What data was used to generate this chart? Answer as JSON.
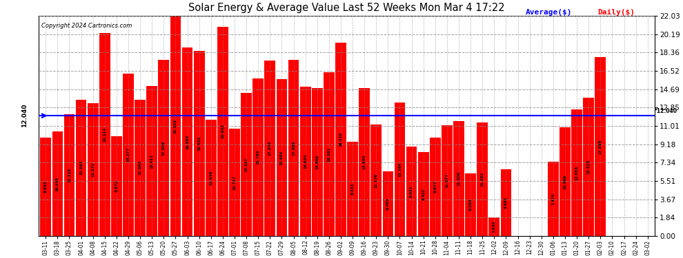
{
  "title": "Solar Energy & Average Value Last 52 Weeks Mon Mar 4 17:22",
  "copyright": "Copyright 2024 Cartronics.com",
  "average_label": "Average($)",
  "daily_label": "Daily($)",
  "average_value": 12.04,
  "ylim": [
    0.0,
    22.03
  ],
  "yticks": [
    0.0,
    1.84,
    3.67,
    5.51,
    7.34,
    9.18,
    11.01,
    12.85,
    14.69,
    16.52,
    18.36,
    20.19,
    22.03
  ],
  "bar_color": "#ff0000",
  "avg_line_color": "#0000ff",
  "background_color": "#ffffff",
  "grid_color": "#888888",
  "categories": [
    "03-11",
    "03-18",
    "03-25",
    "04-01",
    "04-08",
    "04-15",
    "04-22",
    "04-29",
    "05-06",
    "05-13",
    "05-20",
    "05-27",
    "06-03",
    "06-10",
    "06-17",
    "06-24",
    "07-01",
    "07-08",
    "07-15",
    "07-22",
    "07-29",
    "08-05",
    "08-12",
    "08-19",
    "08-26",
    "09-02",
    "09-09",
    "09-16",
    "09-23",
    "09-30",
    "10-07",
    "10-14",
    "10-21",
    "10-28",
    "11-04",
    "11-11",
    "11-18",
    "11-25",
    "12-02",
    "12-09",
    "12-16",
    "12-23",
    "12-30",
    "01-06",
    "01-13",
    "01-20",
    "01-27",
    "02-03",
    "02-10",
    "02-17",
    "02-24",
    "03-02"
  ],
  "values": [
    9.853,
    10.455,
    12.216,
    13.662,
    13.272,
    20.314,
    9.972,
    16.277,
    13.662,
    15.011,
    17.629,
    22.028,
    18.884,
    18.553,
    11.646,
    20.952,
    10.717,
    14.327,
    15.76,
    17.543,
    15.684,
    17.605,
    14.934,
    14.809,
    16.381,
    19.318,
    9.423,
    14.84,
    11.136,
    6.46,
    13.364,
    8.931,
    8.422,
    9.877,
    11.077,
    11.506,
    6.29,
    11.393,
    1.85,
    6.681,
    0.0,
    0.013,
    0.0,
    7.47,
    10.889,
    12.656,
    13.825,
    17.899,
    0.001,
    0.001,
    0.001,
    0.001
  ]
}
